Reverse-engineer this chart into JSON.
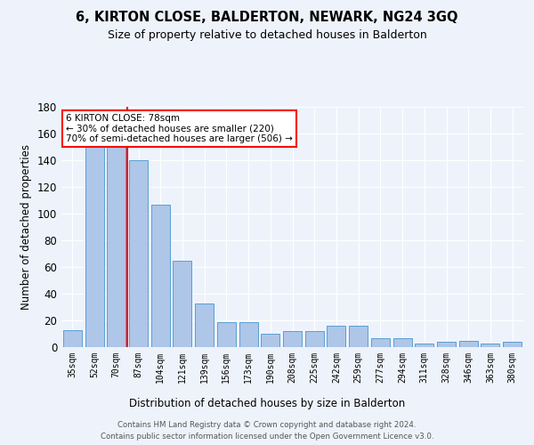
{
  "title": "6, KIRTON CLOSE, BALDERTON, NEWARK, NG24 3GQ",
  "subtitle": "Size of property relative to detached houses in Balderton",
  "xlabel": "Distribution of detached houses by size in Balderton",
  "ylabel": "Number of detached properties",
  "categories": [
    "35sqm",
    "52sqm",
    "70sqm",
    "87sqm",
    "104sqm",
    "121sqm",
    "139sqm",
    "156sqm",
    "173sqm",
    "190sqm",
    "208sqm",
    "225sqm",
    "242sqm",
    "259sqm",
    "277sqm",
    "294sqm",
    "311sqm",
    "328sqm",
    "346sqm",
    "363sqm",
    "380sqm"
  ],
  "values": [
    13,
    150,
    150,
    140,
    107,
    65,
    33,
    19,
    19,
    10,
    12,
    12,
    16,
    16,
    7,
    7,
    3,
    4,
    5,
    3,
    4
  ],
  "bar_color": "#aec6e8",
  "bar_edge_color": "#5a9fd4",
  "red_line_x": 2.5,
  "annotation_title": "6 KIRTON CLOSE: 78sqm",
  "annotation_line1": "← 30% of detached houses are smaller (220)",
  "annotation_line2": "70% of semi-detached houses are larger (506) →",
  "annotation_box_color": "white",
  "annotation_box_edge": "red",
  "ylim": [
    0,
    180
  ],
  "yticks": [
    0,
    20,
    40,
    60,
    80,
    100,
    120,
    140,
    160,
    180
  ],
  "footer_line1": "Contains HM Land Registry data © Crown copyright and database right 2024.",
  "footer_line2": "Contains public sector information licensed under the Open Government Licence v3.0.",
  "bg_color": "#eef3fb",
  "plot_bg_color": "#eef3fb",
  "grid_color": "white"
}
